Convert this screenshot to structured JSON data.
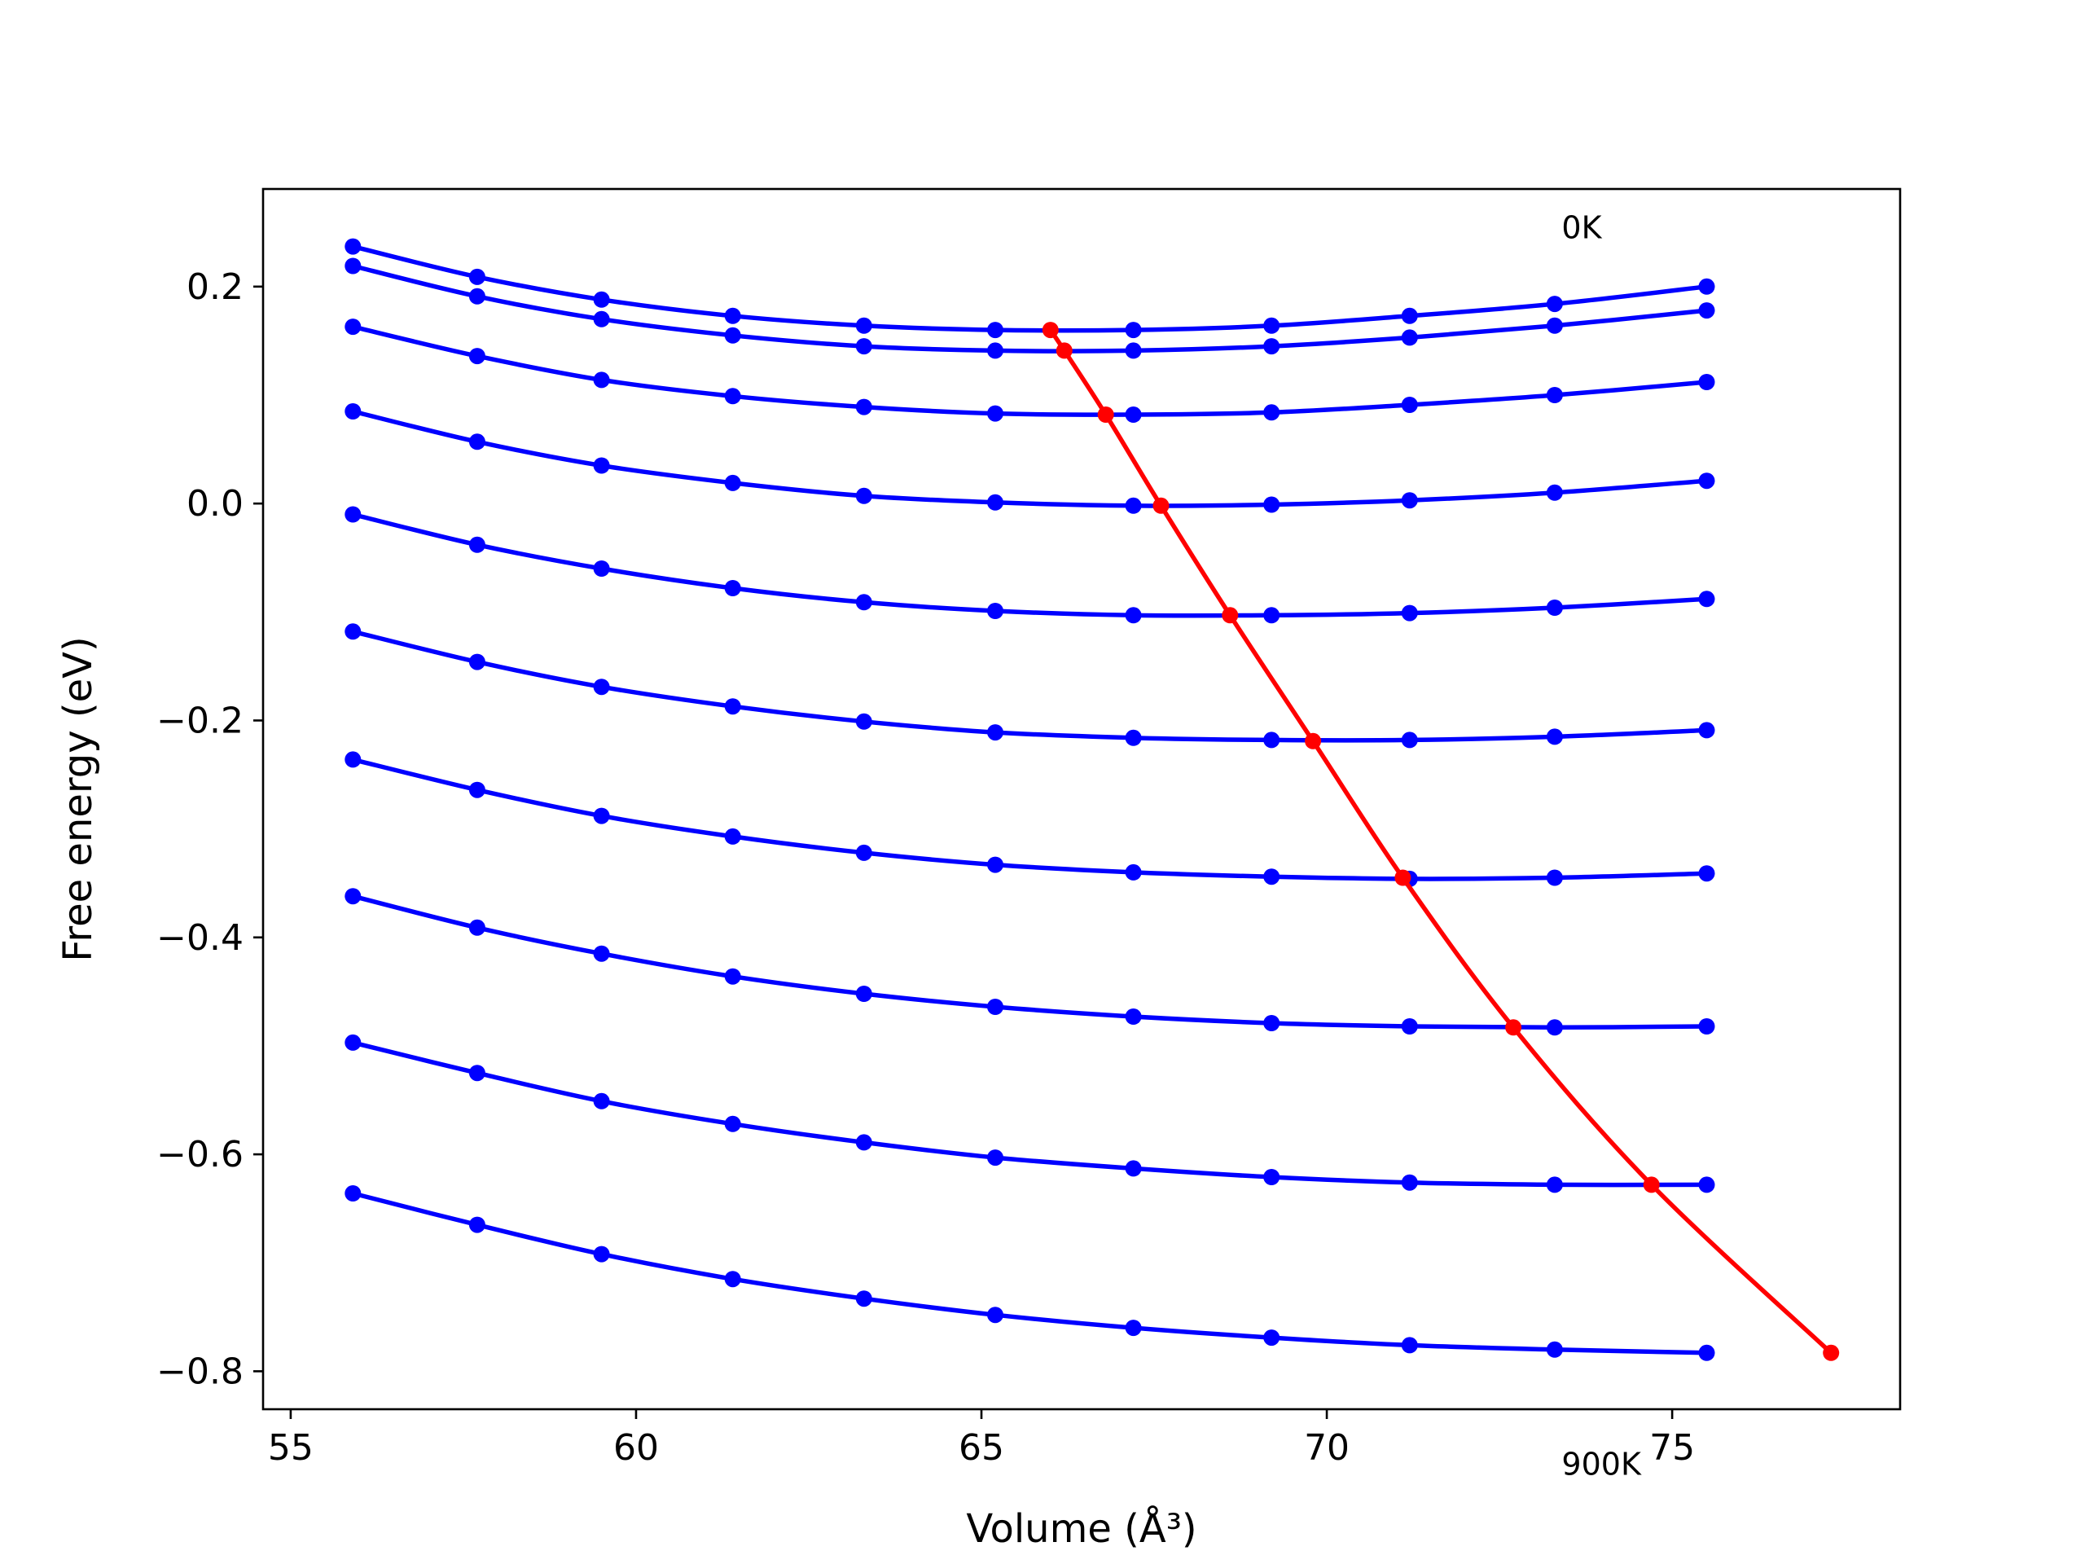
{
  "chart_data": {
    "type": "line",
    "xlabel": "Volume (Å³)",
    "ylabel": "Free energy (eV)",
    "xlim": [
      54.6,
      78.3
    ],
    "ylim": [
      -0.835,
      0.29
    ],
    "xticks": [
      55,
      60,
      65,
      70,
      75
    ],
    "xtick_labels": [
      "55",
      "60",
      "65",
      "70",
      "75"
    ],
    "yticks": [
      -0.8,
      -0.6,
      -0.4,
      -0.2,
      0.0,
      0.2
    ],
    "ytick_labels": [
      "−0.8",
      "−0.6",
      "−0.4",
      "−0.2",
      "0.0",
      "0.2"
    ],
    "grid": false,
    "legend": "none",
    "annotations": [
      {
        "text": "0K",
        "x": 73.4,
        "y": 0.255
      },
      {
        "text": "900K",
        "x": 73.4,
        "y": -0.885
      }
    ],
    "x": [
      55.9,
      57.7,
      59.5,
      61.4,
      63.3,
      65.2,
      67.2,
      69.2,
      71.2,
      73.3,
      75.5
    ],
    "series": [
      {
        "color": "#0000ff",
        "values": [
          0.237,
          0.209,
          0.188,
          0.173,
          0.164,
          0.16,
          0.16,
          0.164,
          0.173,
          0.184,
          0.2
        ]
      },
      {
        "color": "#0000ff",
        "values": [
          0.219,
          0.191,
          0.17,
          0.155,
          0.145,
          0.141,
          0.141,
          0.145,
          0.153,
          0.164,
          0.178
        ]
      },
      {
        "color": "#0000ff",
        "values": [
          0.163,
          0.136,
          0.114,
          0.099,
          0.089,
          0.083,
          0.082,
          0.084,
          0.091,
          0.1,
          0.112
        ]
      },
      {
        "color": "#0000ff",
        "values": [
          0.085,
          0.057,
          0.035,
          0.019,
          0.007,
          0.001,
          -0.002,
          -0.001,
          0.003,
          0.01,
          0.021
        ]
      },
      {
        "color": "#0000ff",
        "values": [
          -0.01,
          -0.038,
          -0.06,
          -0.078,
          -0.091,
          -0.099,
          -0.103,
          -0.103,
          -0.101,
          -0.096,
          -0.088
        ]
      },
      {
        "color": "#0000ff",
        "values": [
          -0.118,
          -0.146,
          -0.169,
          -0.187,
          -0.201,
          -0.211,
          -0.216,
          -0.218,
          -0.218,
          -0.215,
          -0.209
        ]
      },
      {
        "color": "#0000ff",
        "values": [
          -0.236,
          -0.264,
          -0.288,
          -0.307,
          -0.322,
          -0.333,
          -0.34,
          -0.344,
          -0.346,
          -0.345,
          -0.341
        ]
      },
      {
        "color": "#0000ff",
        "values": [
          -0.362,
          -0.391,
          -0.415,
          -0.436,
          -0.452,
          -0.464,
          -0.473,
          -0.479,
          -0.482,
          -0.483,
          -0.482
        ]
      },
      {
        "color": "#0000ff",
        "values": [
          -0.497,
          -0.525,
          -0.551,
          -0.572,
          -0.589,
          -0.603,
          -0.613,
          -0.621,
          -0.626,
          -0.628,
          -0.628
        ]
      },
      {
        "color": "#0000ff",
        "values": [
          -0.636,
          -0.665,
          -0.692,
          -0.715,
          -0.733,
          -0.748,
          -0.76,
          -0.769,
          -0.776,
          -0.78,
          -0.783
        ]
      }
    ],
    "minima_curve": {
      "color": "#ff0000",
      "x": [
        66.0,
        66.2,
        66.8,
        67.6,
        68.6,
        69.8,
        71.1,
        72.7,
        74.7,
        77.3
      ],
      "y": [
        0.16,
        0.141,
        0.082,
        -0.002,
        -0.103,
        -0.219,
        -0.345,
        -0.483,
        -0.628,
        -0.783
      ]
    }
  }
}
